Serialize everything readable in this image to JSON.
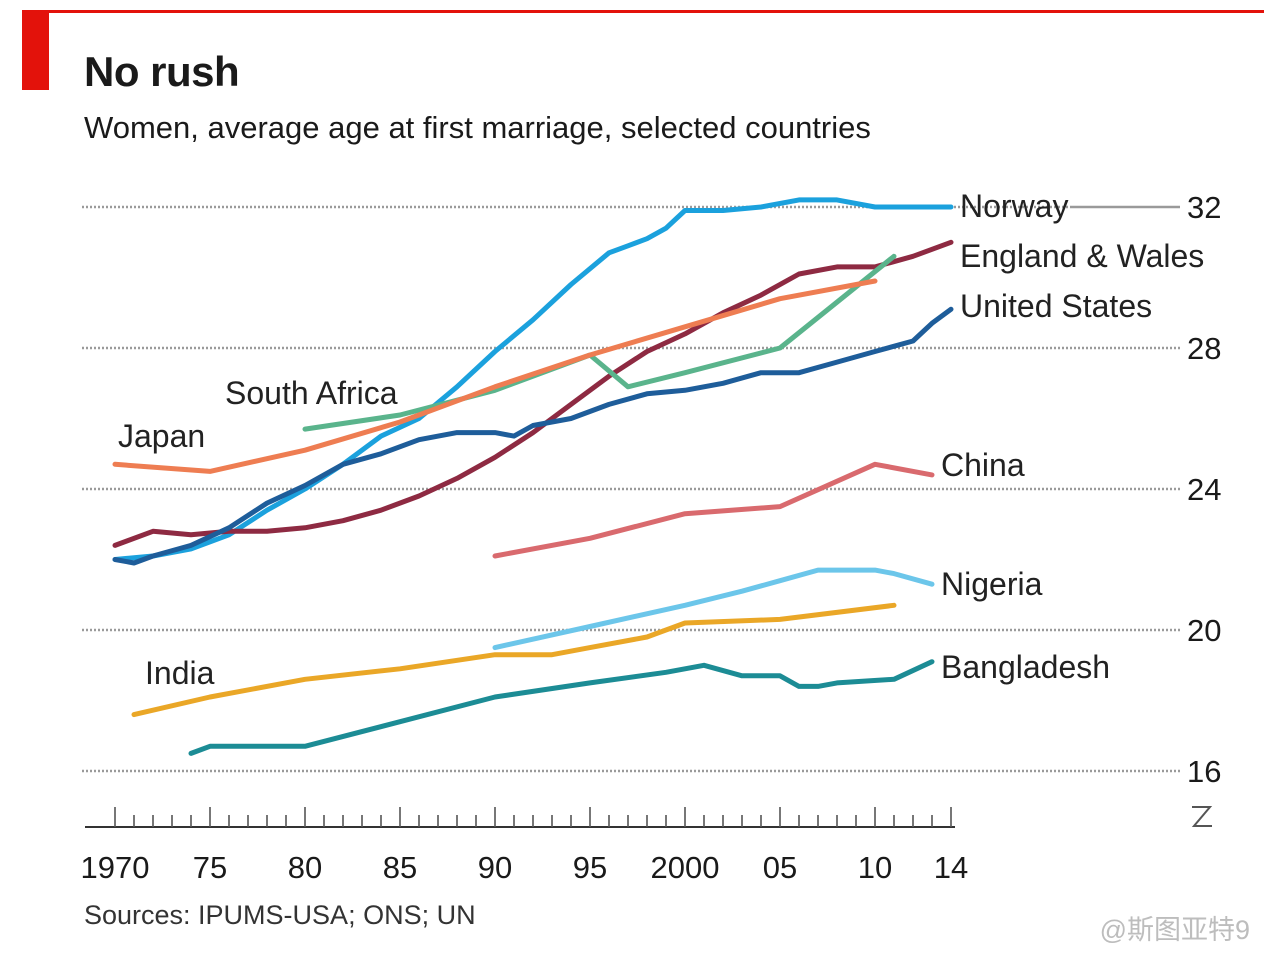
{
  "header": {
    "title": "No rush",
    "subtitle": "Women, average age at first marriage, selected countries"
  },
  "footer": {
    "source": "Sources: IPUMS-USA; ONS; UN",
    "watermark": "@斯图亚特9"
  },
  "colors": {
    "brand_red": "#e3120b",
    "grid": "#9a9a9a",
    "text": "#1a1a1a"
  },
  "chart_data": {
    "type": "line",
    "title": "No rush",
    "subtitle": "Women, average age at first marriage, selected countries",
    "xlabel": "",
    "ylabel": "",
    "xlim": [
      1970,
      2014
    ],
    "ylim": [
      16,
      32
    ],
    "y_ticks": [
      16,
      20,
      24,
      28,
      32
    ],
    "y_tick_labels": [
      "16",
      "20",
      "24",
      "28",
      "32"
    ],
    "x_ticks": [
      1970,
      1975,
      1980,
      1985,
      1990,
      1995,
      2000,
      2005,
      2010,
      2014
    ],
    "x_tick_labels": [
      "1970",
      "75",
      "80",
      "85",
      "90",
      "95",
      "2000",
      "05",
      "10",
      "14"
    ],
    "grid": true,
    "y_axis_position": "right",
    "axis_break": true,
    "series": [
      {
        "name": "Norway",
        "color": "#1ba1dd",
        "x": [
          1970,
          1972,
          1974,
          1976,
          1978,
          1980,
          1982,
          1984,
          1986,
          1988,
          1990,
          1992,
          1994,
          1996,
          1997,
          1998,
          1999,
          2000,
          2002,
          2004,
          2006,
          2008,
          2010,
          2012,
          2014
        ],
        "y": [
          22.0,
          22.1,
          22.3,
          22.7,
          23.4,
          24.0,
          24.7,
          25.5,
          26.0,
          26.9,
          27.9,
          28.8,
          29.8,
          30.7,
          30.9,
          31.1,
          31.4,
          31.9,
          31.9,
          32.0,
          32.2,
          32.2,
          32.0,
          32.0,
          32.0
        ]
      },
      {
        "name": "England & Wales",
        "color": "#8e2a42",
        "x": [
          1970,
          1972,
          1974,
          1976,
          1978,
          1980,
          1982,
          1984,
          1986,
          1988,
          1990,
          1992,
          1994,
          1996,
          1998,
          2000,
          2002,
          2004,
          2006,
          2008,
          2010,
          2012,
          2014
        ],
        "y": [
          22.4,
          22.8,
          22.7,
          22.8,
          22.8,
          22.9,
          23.1,
          23.4,
          23.8,
          24.3,
          24.9,
          25.6,
          26.4,
          27.2,
          27.9,
          28.4,
          29.0,
          29.5,
          30.1,
          30.3,
          30.3,
          30.6,
          31.0
        ]
      },
      {
        "name": "United States",
        "color": "#1e5d9a",
        "x": [
          1970,
          1971,
          1972,
          1974,
          1976,
          1978,
          1980,
          1982,
          1984,
          1986,
          1988,
          1990,
          1991,
          1992,
          1994,
          1996,
          1998,
          2000,
          2002,
          2004,
          2006,
          2008,
          2010,
          2012,
          2013,
          2014
        ],
        "y": [
          22.0,
          21.9,
          22.1,
          22.4,
          22.9,
          23.6,
          24.1,
          24.7,
          25.0,
          25.4,
          25.6,
          25.6,
          25.5,
          25.8,
          26.0,
          26.4,
          26.7,
          26.8,
          27.0,
          27.3,
          27.3,
          27.6,
          27.9,
          28.2,
          28.7,
          29.1
        ]
      },
      {
        "name": "South Africa",
        "color": "#5ab48c",
        "x": [
          1980,
          1985,
          1990,
          1995,
          1997,
          2000,
          2005,
          2011
        ],
        "y": [
          25.7,
          26.1,
          26.8,
          27.8,
          26.9,
          27.3,
          28.0,
          30.6
        ]
      },
      {
        "name": "Japan",
        "color": "#ee7d52",
        "x": [
          1970,
          1975,
          1980,
          1985,
          1990,
          1995,
          2000,
          2005,
          2010
        ],
        "y": [
          24.7,
          24.5,
          25.1,
          25.9,
          26.9,
          27.8,
          28.6,
          29.4,
          29.9
        ]
      },
      {
        "name": "China",
        "color": "#d96a6e",
        "x": [
          1990,
          1995,
          2000,
          2005,
          2010,
          2013
        ],
        "y": [
          22.1,
          22.6,
          23.3,
          23.5,
          24.7,
          24.4
        ]
      },
      {
        "name": "Nigeria",
        "color": "#6cc6ea",
        "x": [
          1990,
          1995,
          2000,
          2003,
          2005,
          2007,
          2008,
          2010,
          2011,
          2013
        ],
        "y": [
          19.5,
          20.1,
          20.7,
          21.1,
          21.4,
          21.7,
          21.7,
          21.7,
          21.6,
          21.3
        ]
      },
      {
        "name": "India",
        "color": "#eaa727",
        "x": [
          1971,
          1975,
          1980,
          1985,
          1990,
          1993,
          1995,
          1998,
          2000,
          2005,
          2011
        ],
        "y": [
          17.6,
          18.1,
          18.6,
          18.9,
          19.3,
          19.3,
          19.5,
          19.8,
          20.2,
          20.3,
          20.7
        ]
      },
      {
        "name": "Bangladesh",
        "color": "#1c8c95",
        "x": [
          1974,
          1975,
          1980,
          1985,
          1990,
          1995,
          1999,
          2001,
          2003,
          2005,
          2006,
          2007,
          2008,
          2011,
          2013
        ],
        "y": [
          16.5,
          16.7,
          16.7,
          17.4,
          18.1,
          18.5,
          18.8,
          19.0,
          18.7,
          18.7,
          18.4,
          18.4,
          18.5,
          18.6,
          19.1
        ]
      }
    ],
    "labels": [
      {
        "text": "Norway",
        "series": "Norway"
      },
      {
        "text": "England & Wales",
        "series": "England & Wales"
      },
      {
        "text": "United States",
        "series": "United States"
      },
      {
        "text": "South Africa",
        "series": "South Africa"
      },
      {
        "text": "Japan",
        "series": "Japan"
      },
      {
        "text": "China",
        "series": "China"
      },
      {
        "text": "Nigeria",
        "series": "Nigeria"
      },
      {
        "text": "India",
        "series": "India"
      },
      {
        "text": "Bangladesh",
        "series": "Bangladesh"
      }
    ]
  }
}
